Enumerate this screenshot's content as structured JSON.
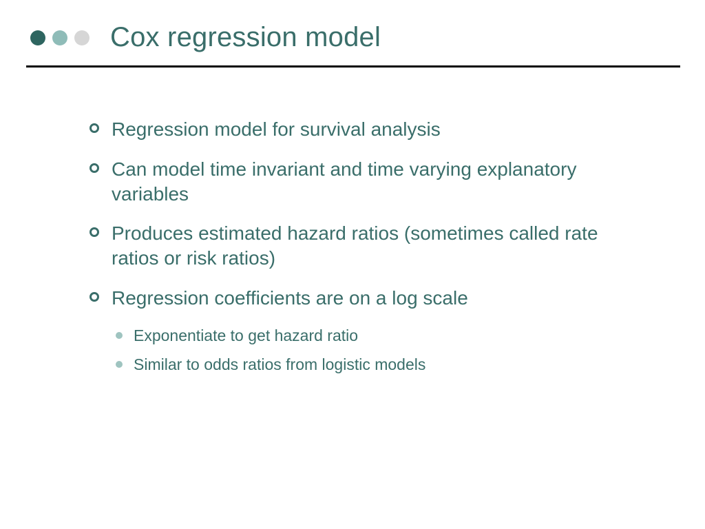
{
  "colors": {
    "title": "#3a6e6a",
    "body_text": "#3a6e6a",
    "dot1": "#2e6560",
    "dot2": "#8fbcb8",
    "dot3": "#d6d6d6",
    "rule": "#000000",
    "bullet1_border": "#3a6e6a",
    "bullet2_fill": "#9fc4c0",
    "background": "#ffffff"
  },
  "typography": {
    "title_fontsize": 40,
    "lvl1_fontsize": 28,
    "lvl2_fontsize": 23,
    "font_family": "Arial"
  },
  "title": "Cox regression model",
  "bullets": [
    {
      "text": "Regression model for survival analysis",
      "sub": []
    },
    {
      "text": "Can model time invariant and time varying explanatory variables",
      "sub": []
    },
    {
      "text": "Produces estimated hazard ratios (sometimes called rate ratios or risk ratios)",
      "sub": []
    },
    {
      "text": "Regression coefficients are on a log scale",
      "sub": [
        "Exponentiate to get hazard ratio",
        "Similar to odds ratios from logistic models"
      ]
    }
  ]
}
